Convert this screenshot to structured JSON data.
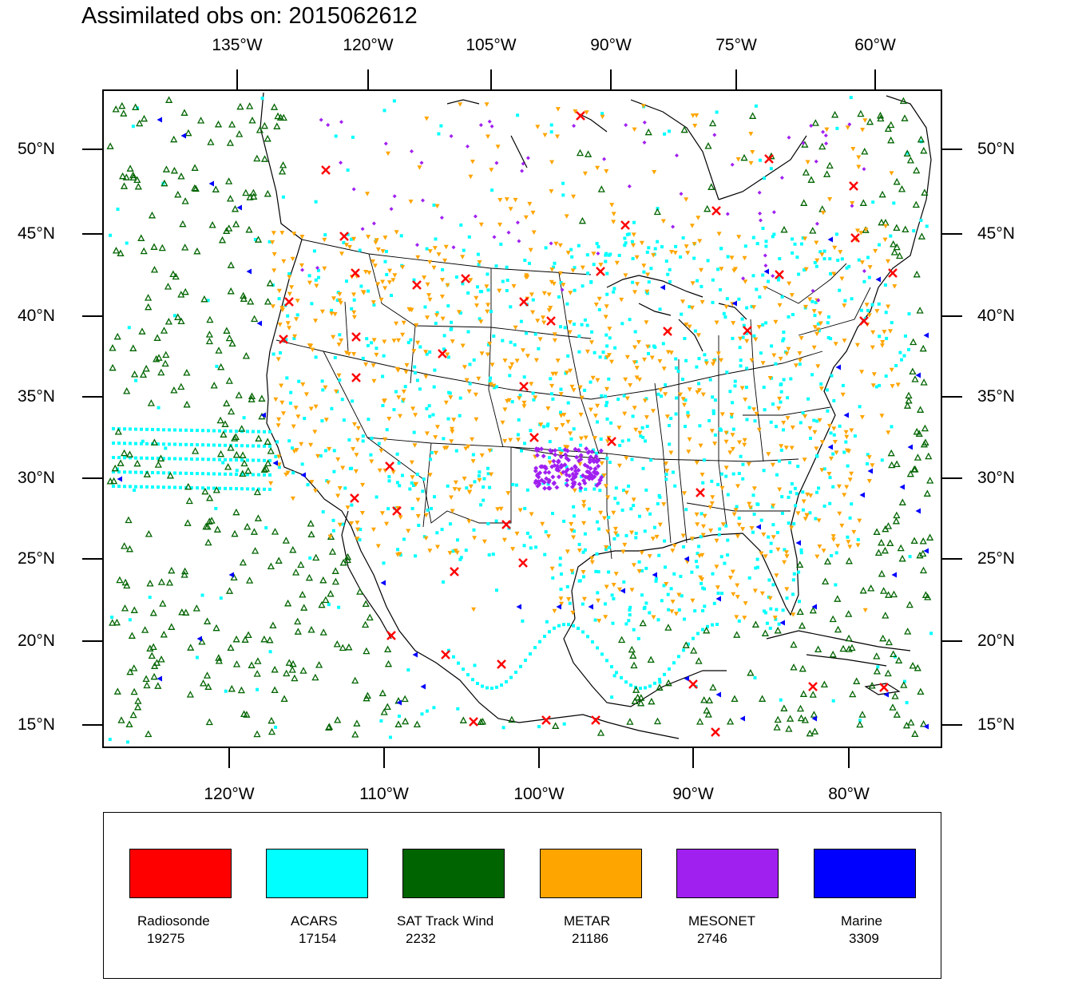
{
  "title": "Assimilated obs on: 2015062612",
  "axes": {
    "top_lon_labels": [
      "135°W",
      "120°W",
      "105°W",
      "90°W",
      "75°W",
      "60°W"
    ],
    "bottom_lon_labels": [
      "120°W",
      "110°W",
      "100°W",
      "90°W",
      "80°W"
    ],
    "lat_labels": [
      "50°N",
      "45°N",
      "40°N",
      "35°N",
      "30°N",
      "25°N",
      "20°N",
      "15°N"
    ]
  },
  "colors": {
    "radiosonde": "#ff0000",
    "acars": "#00ffff",
    "sat_track_wind": "#006400",
    "metar": "#ffa500",
    "mesonet": "#a020f0",
    "marine": "#0000ff"
  },
  "legend": [
    {
      "label": "Radiosonde",
      "count": "19275",
      "color": "#ff0000",
      "marker": "x-icon"
    },
    {
      "label": "ACARS",
      "count": "17154",
      "color": "#00ffff",
      "marker": "square-dot-icon"
    },
    {
      "label": "SAT Track Wind",
      "count": "2232",
      "color": "#006400",
      "marker": "triangle-up-icon"
    },
    {
      "label": "METAR",
      "count": "21186",
      "color": "#ffa500",
      "marker": "triangle-down-icon"
    },
    {
      "label": "MESONET",
      "count": "2746",
      "color": "#a020f0",
      "marker": "diamond-icon"
    },
    {
      "label": "Marine",
      "count": "3309",
      "color": "#0000ff",
      "marker": "triangle-left-icon"
    }
  ]
}
